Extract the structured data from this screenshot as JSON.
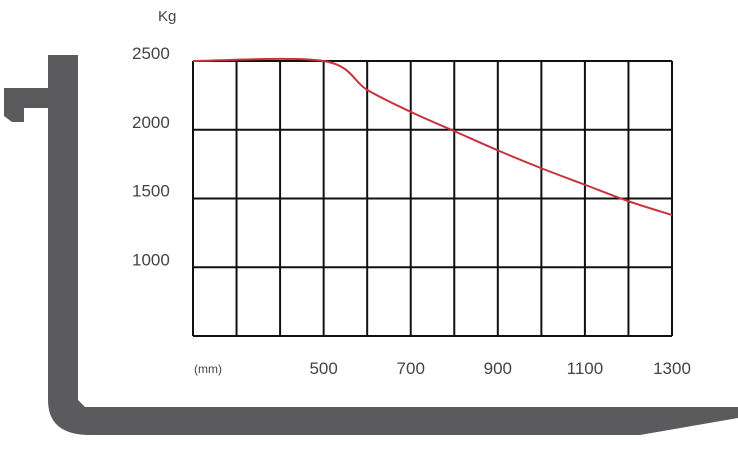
{
  "chart_data": {
    "type": "line",
    "title": "",
    "ylabel": "Kg",
    "xlabel": "(mm)",
    "x_tick_labels": [
      "500",
      "700",
      "900",
      "1100",
      "1300"
    ],
    "y_tick_labels": [
      "1000",
      "1500",
      "2000",
      "2500"
    ],
    "xlim": [
      200,
      1300
    ],
    "ylim": [
      500,
      2500
    ],
    "grid": true,
    "series": [
      {
        "color": "#c8323c",
        "x": [
          200,
          500,
          600,
          700,
          800,
          900,
          1000,
          1100,
          1200,
          1300
        ],
        "y": [
          2500,
          2500,
          2290,
          2130,
          1990,
          1850,
          1720,
          1600,
          1480,
          1380
        ]
      }
    ]
  },
  "colors": {
    "grid": "#111111",
    "fork": "#5b5b5e",
    "curve": "#c8323c"
  },
  "icons": {
    "fork": "forklift-fork-silhouette"
  }
}
